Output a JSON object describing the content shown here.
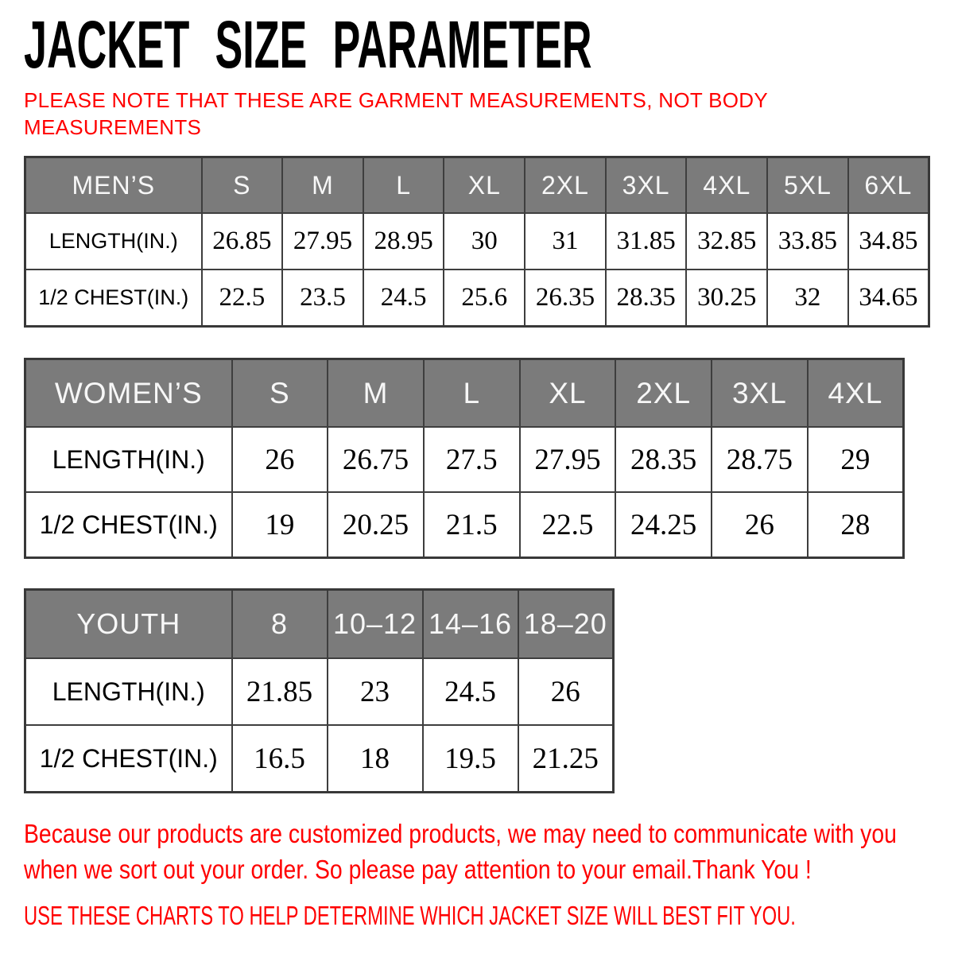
{
  "page": {
    "title": "JACKET SIZE PARAMETER",
    "note": "PLEASE NOTE THAT THESE ARE GARMENT MEASUREMENTS, NOT BODY MEASUREMENTS",
    "footer": {
      "lines": [
        "Because our products are customized products, we may need to communicate with you",
        "when we sort out your order. So please pay attention to your email.Thank You !"
      ],
      "cta": "USE THESE CHARTS TO HELP DETERMINE WHICH JACKET SIZE WILL BEST FIT YOU."
    }
  },
  "colors": {
    "accent_red": "#ff0000",
    "header_gray": "#7b7b7b",
    "header_text": "#f7f7f7",
    "border_dark": "#3e3e3e",
    "text_black": "#000000"
  },
  "tables": {
    "mens": {
      "title": "MEN’S",
      "sizes": [
        "S",
        "M",
        "L",
        "XL",
        "2XL",
        "3XL",
        "4XL",
        "5XL",
        "6XL"
      ],
      "rows": [
        {
          "label": "LENGTH(IN.)",
          "values": [
            "26.85",
            "27.95",
            "28.95",
            "30",
            "31",
            "31.85",
            "32.85",
            "33.85",
            "34.85"
          ]
        },
        {
          "label": "1/2 CHEST(IN.)",
          "values": [
            "22.5",
            "23.5",
            "24.5",
            "25.6",
            "26.35",
            "28.35",
            "30.25",
            "32",
            "34.65"
          ]
        }
      ]
    },
    "womens": {
      "title": "WOMEN’S",
      "sizes": [
        "S",
        "M",
        "L",
        "XL",
        "2XL",
        "3XL",
        "4XL"
      ],
      "rows": [
        {
          "label": "LENGTH(IN.)",
          "values": [
            "26",
            "26.75",
            "27.5",
            "27.95",
            "28.35",
            "28.75",
            "29"
          ]
        },
        {
          "label": "1/2 CHEST(IN.)",
          "values": [
            "19",
            "20.25",
            "21.5",
            "22.5",
            "24.25",
            "26",
            "28"
          ]
        }
      ]
    },
    "youth": {
      "title": "YOUTH",
      "sizes": [
        "8",
        "10–12",
        "14–16",
        "18–20"
      ],
      "rows": [
        {
          "label": "LENGTH(IN.)",
          "values": [
            "21.85",
            "23",
            "24.5",
            "26"
          ]
        },
        {
          "label": "1/2 CHEST(IN.)",
          "values": [
            "16.5",
            "18",
            "19.5",
            "21.25"
          ]
        }
      ]
    }
  }
}
